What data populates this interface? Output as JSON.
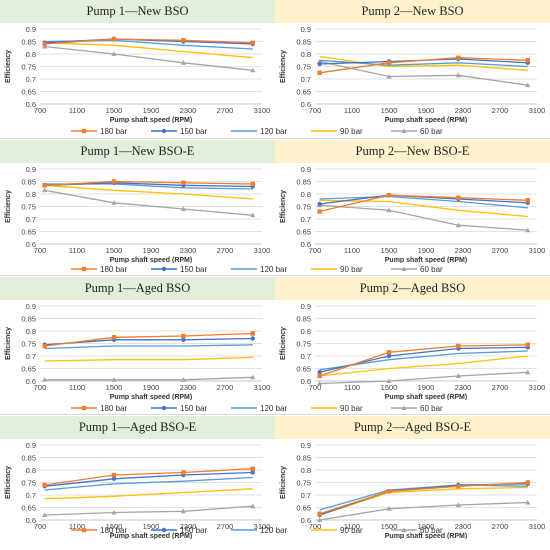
{
  "legend_labels": [
    "180 bar",
    "150 bar",
    "120 bar",
    "90 bar",
    "60 bar"
  ],
  "colors": {
    "s180": "#ed7d31",
    "s150": "#4472c4",
    "s120": "#5b9bd5",
    "s90": "#ffc000",
    "s60": "#a5a5a5",
    "pump1_header": "#e2efda",
    "pump2_header": "#fff2cc"
  },
  "chart_data": [
    {
      "type": "line",
      "title": "Pump 1—New BSO",
      "xlabel": "Pump shaft speed (RPM)",
      "ylabel": "Efficiency",
      "xlim": [
        700,
        3100
      ],
      "ylim": [
        0.6,
        0.9
      ],
      "xticks": [
        "700",
        "1100",
        "1500",
        "1900",
        "2300",
        "2700",
        "3100"
      ],
      "yticks": [
        "0.6",
        "0.65",
        "0.7",
        "0.75",
        "0.8",
        "0.85",
        "0.9"
      ],
      "x": [
        750,
        1500,
        2250,
        3000
      ],
      "series": [
        {
          "name": "180 bar",
          "values": [
            0.84,
            0.86,
            0.855,
            0.845
          ]
        },
        {
          "name": "150 bar",
          "values": [
            0.845,
            0.86,
            0.85,
            0.84
          ]
        },
        {
          "name": "120 bar",
          "values": [
            0.85,
            0.855,
            0.835,
            0.82
          ]
        },
        {
          "name": "90 bar",
          "values": [
            0.845,
            0.835,
            0.81,
            0.785
          ]
        },
        {
          "name": "60 bar",
          "values": [
            0.83,
            0.8,
            0.765,
            0.735
          ]
        }
      ]
    },
    {
      "type": "line",
      "title": "Pump 2—New BSO",
      "xlabel": "Pump shaft speed (RPM)",
      "ylabel": "Efficiency",
      "xlim": [
        700,
        3100
      ],
      "ylim": [
        0.6,
        0.9
      ],
      "xticks": [
        "700",
        "1100",
        "1500",
        "1900",
        "2300",
        "2700",
        "3100"
      ],
      "yticks": [
        "0.6",
        "0.65",
        "0.7",
        "0.75",
        "0.8",
        "0.85",
        "0.9"
      ],
      "x": [
        750,
        1500,
        2250,
        3000
      ],
      "series": [
        {
          "name": "180 bar",
          "values": [
            0.725,
            0.765,
            0.785,
            0.775
          ]
        },
        {
          "name": "150 bar",
          "values": [
            0.76,
            0.77,
            0.78,
            0.765
          ]
        },
        {
          "name": "120 bar",
          "values": [
            0.775,
            0.755,
            0.765,
            0.75
          ]
        },
        {
          "name": "90 bar",
          "values": [
            0.79,
            0.75,
            0.755,
            0.735
          ]
        },
        {
          "name": "60 bar",
          "values": [
            0.77,
            0.71,
            0.715,
            0.675
          ]
        }
      ]
    },
    {
      "type": "line",
      "title": "Pump 1—New BSO-E",
      "xlabel": "Pump shaft speed (RPM)",
      "ylabel": "Efficiency",
      "xlim": [
        700,
        3100
      ],
      "ylim": [
        0.6,
        0.9
      ],
      "xticks": [
        "700",
        "1100",
        "1500",
        "1900",
        "2300",
        "2700",
        "3100"
      ],
      "yticks": [
        "0.6",
        "0.65",
        "0.7",
        "0.75",
        "0.8",
        "0.85",
        "0.9"
      ],
      "x": [
        750,
        1500,
        2250,
        3000
      ],
      "series": [
        {
          "name": "180 bar",
          "values": [
            0.835,
            0.85,
            0.845,
            0.84
          ]
        },
        {
          "name": "150 bar",
          "values": [
            0.835,
            0.845,
            0.835,
            0.83
          ]
        },
        {
          "name": "120 bar",
          "values": [
            0.84,
            0.84,
            0.825,
            0.82
          ]
        },
        {
          "name": "90 bar",
          "values": [
            0.835,
            0.815,
            0.8,
            0.78
          ]
        },
        {
          "name": "60 bar",
          "values": [
            0.815,
            0.765,
            0.74,
            0.715
          ]
        }
      ]
    },
    {
      "type": "line",
      "title": "Pump 2—New BSO-E",
      "xlabel": "Pump shaft speed (RPM)",
      "ylabel": "Efficiency",
      "xlim": [
        700,
        3100
      ],
      "ylim": [
        0.6,
        0.9
      ],
      "xticks": [
        "700",
        "1100",
        "1500",
        "1900",
        "2300",
        "2700",
        "3100"
      ],
      "yticks": [
        "0.6",
        "0.65",
        "0.7",
        "0.75",
        "0.8",
        "0.85",
        "0.9"
      ],
      "x": [
        750,
        1500,
        2250,
        3000
      ],
      "series": [
        {
          "name": "180 bar",
          "values": [
            0.73,
            0.795,
            0.785,
            0.775
          ]
        },
        {
          "name": "150 bar",
          "values": [
            0.76,
            0.795,
            0.78,
            0.765
          ]
        },
        {
          "name": "120 bar",
          "values": [
            0.78,
            0.79,
            0.77,
            0.745
          ]
        },
        {
          "name": "90 bar",
          "values": [
            0.775,
            0.77,
            0.735,
            0.71
          ]
        },
        {
          "name": "60 bar",
          "values": [
            0.755,
            0.735,
            0.675,
            0.655
          ]
        }
      ]
    },
    {
      "type": "line",
      "title": "Pump 1—Aged BSO",
      "xlabel": "Pump shaft speed (RPM)",
      "ylabel": "Efficiency",
      "xlim": [
        700,
        3100
      ],
      "ylim": [
        0.6,
        0.9
      ],
      "xticks": [
        "700",
        "1100",
        "1500",
        "1900",
        "2300",
        "2700",
        "3100"
      ],
      "yticks": [
        "0.6",
        "0.65",
        "0.7",
        "0.75",
        "0.8",
        "0.85",
        "0.9"
      ],
      "x": [
        750,
        1500,
        2250,
        3000
      ],
      "series": [
        {
          "name": "180 bar",
          "values": [
            0.74,
            0.775,
            0.78,
            0.79
          ]
        },
        {
          "name": "150 bar",
          "values": [
            0.745,
            0.765,
            0.765,
            0.77
          ]
        },
        {
          "name": "120 bar",
          "values": [
            0.73,
            0.74,
            0.74,
            0.745
          ]
        },
        {
          "name": "90 bar",
          "values": [
            0.68,
            0.685,
            0.685,
            0.695
          ]
        },
        {
          "name": "60 bar",
          "values": [
            0.605,
            0.605,
            0.605,
            0.615
          ]
        }
      ]
    },
    {
      "type": "line",
      "title": "Pump 2—Aged BSO",
      "xlabel": "Pump shaft speed (RPM)",
      "ylabel": "Efficiency",
      "xlim": [
        700,
        3100
      ],
      "ylim": [
        0.6,
        0.9
      ],
      "xticks": [
        "700",
        "1100",
        "1500",
        "1900",
        "2300",
        "2700",
        "3100"
      ],
      "yticks": [
        "0.6",
        "0.65",
        "0.7",
        "0.75",
        "0.8",
        "0.85",
        "0.9"
      ],
      "x": [
        750,
        1500,
        2250,
        3000
      ],
      "series": [
        {
          "name": "180 bar",
          "values": [
            0.62,
            0.715,
            0.74,
            0.745
          ]
        },
        {
          "name": "150 bar",
          "values": [
            0.635,
            0.7,
            0.73,
            0.735
          ]
        },
        {
          "name": "120 bar",
          "values": [
            0.645,
            0.685,
            0.71,
            0.72
          ]
        },
        {
          "name": "90 bar",
          "values": [
            0.62,
            0.65,
            0.67,
            0.7
          ]
        },
        {
          "name": "60 bar",
          "values": [
            0.59,
            0.6,
            0.62,
            0.635
          ]
        }
      ]
    },
    {
      "type": "line",
      "title": "Pump 1—Aged BSO-E",
      "xlabel": "Pump shaft speed (RPM)",
      "ylabel": "Efficiency",
      "xlim": [
        700,
        3100
      ],
      "ylim": [
        0.6,
        0.9
      ],
      "xticks": [
        "700",
        "1100",
        "1500",
        "1900",
        "2300",
        "2700",
        "3100"
      ],
      "yticks": [
        "0.6",
        "0.65",
        "0.7",
        "0.75",
        "0.8",
        "0.85",
        "0.9"
      ],
      "x": [
        750,
        1500,
        2250,
        3000
      ],
      "series": [
        {
          "name": "180 bar",
          "values": [
            0.74,
            0.78,
            0.79,
            0.805
          ]
        },
        {
          "name": "150 bar",
          "values": [
            0.735,
            0.765,
            0.78,
            0.79
          ]
        },
        {
          "name": "120 bar",
          "values": [
            0.72,
            0.745,
            0.755,
            0.77
          ]
        },
        {
          "name": "90 bar",
          "values": [
            0.685,
            0.695,
            0.71,
            0.725
          ]
        },
        {
          "name": "60 bar",
          "values": [
            0.62,
            0.63,
            0.635,
            0.655
          ]
        }
      ]
    },
    {
      "type": "line",
      "title": "Pump 2—Aged BSO-E",
      "xlabel": "Pump shaft speed (RPM)",
      "ylabel": "Efficiency",
      "xlim": [
        700,
        3100
      ],
      "ylim": [
        0.6,
        0.9
      ],
      "xticks": [
        "700",
        "1100",
        "1500",
        "1900",
        "2300",
        "2700",
        "3100"
      ],
      "yticks": [
        "0.6",
        "0.65",
        "0.7",
        "0.75",
        "0.8",
        "0.85",
        "0.9"
      ],
      "x": [
        750,
        1500,
        2250,
        3000
      ],
      "series": [
        {
          "name": "180 bar",
          "values": [
            0.625,
            0.715,
            0.735,
            0.75
          ]
        },
        {
          "name": "150 bar",
          "values": [
            0.62,
            0.715,
            0.74,
            0.745
          ]
        },
        {
          "name": "120 bar",
          "values": [
            0.64,
            0.72,
            0.74,
            0.735
          ]
        },
        {
          "name": "90 bar",
          "values": [
            0.62,
            0.71,
            0.725,
            0.73
          ]
        },
        {
          "name": "60 bar",
          "values": [
            0.6,
            0.645,
            0.66,
            0.67
          ]
        }
      ]
    }
  ]
}
